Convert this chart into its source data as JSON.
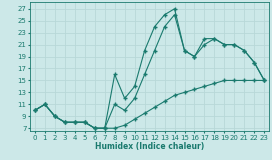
{
  "xlabel": "Humidex (Indice chaleur)",
  "background_color": "#cce8e8",
  "grid_color": "#b8d8d8",
  "line_color": "#1a7a6e",
  "xlim": [
    -0.5,
    23.5
  ],
  "ylim": [
    6.5,
    28.2
  ],
  "xticks": [
    0,
    1,
    2,
    3,
    4,
    5,
    6,
    7,
    8,
    9,
    10,
    11,
    12,
    13,
    14,
    15,
    16,
    17,
    18,
    19,
    20,
    21,
    22,
    23
  ],
  "yticks": [
    7,
    9,
    11,
    13,
    15,
    17,
    19,
    21,
    23,
    25,
    27
  ],
  "line1_x": [
    0,
    1,
    2,
    3,
    4,
    5,
    6,
    7,
    8,
    9,
    10,
    11,
    12,
    13,
    14,
    15,
    16,
    17,
    18,
    19,
    20,
    21,
    22,
    23
  ],
  "line1_y": [
    10,
    11,
    9,
    8,
    8,
    8,
    7,
    7,
    7,
    7.5,
    8.5,
    9.5,
    10.5,
    11.5,
    12.5,
    13,
    13.5,
    14,
    14.5,
    15,
    15,
    15,
    15,
    15
  ],
  "line2_x": [
    0,
    1,
    2,
    3,
    4,
    5,
    6,
    7,
    8,
    9,
    10,
    11,
    12,
    13,
    14,
    15,
    16,
    17,
    18,
    19,
    20,
    21,
    22,
    23
  ],
  "line2_y": [
    10,
    11,
    9,
    8,
    8,
    8,
    7,
    7,
    16,
    12,
    14,
    20,
    24,
    26,
    27,
    20,
    19,
    22,
    22,
    21,
    21,
    20,
    18,
    15
  ],
  "line3_x": [
    0,
    1,
    2,
    3,
    4,
    5,
    6,
    7,
    8,
    9,
    10,
    11,
    12,
    13,
    14,
    15,
    16,
    17,
    18,
    19,
    20,
    21,
    22,
    23
  ],
  "line3_y": [
    10,
    11,
    9,
    8,
    8,
    8,
    7,
    7,
    11,
    10,
    12,
    16,
    20,
    24,
    26,
    20,
    19,
    21,
    22,
    21,
    21,
    20,
    18,
    15
  ]
}
